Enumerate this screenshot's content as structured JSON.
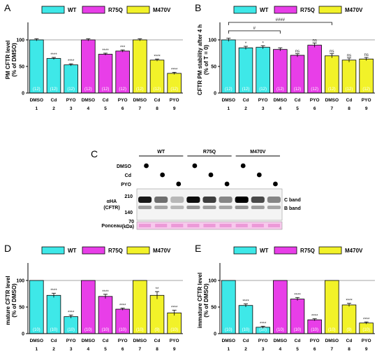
{
  "panel_letters": [
    "A",
    "B",
    "C",
    "D",
    "E"
  ],
  "legend": {
    "entries": [
      {
        "name": "WT",
        "color": "#3ee8e8"
      },
      {
        "name": "R75Q",
        "color": "#e83ee8"
      },
      {
        "name": "M470V",
        "color": "#f2f229"
      }
    ]
  },
  "group_colors": [
    "#3ee8e8",
    "#3ee8e8",
    "#3ee8e8",
    "#e83ee8",
    "#e83ee8",
    "#e83ee8",
    "#f2f229",
    "#f2f229",
    "#f2f229"
  ],
  "blot": {
    "groups": [
      "WT",
      "R75Q",
      "M470V"
    ],
    "treatments": [
      "DMSO",
      "Cd",
      "PYO"
    ],
    "antibody": "αHA\n(CFTR)",
    "loading": "Ponceau",
    "markers": [
      "210",
      "140",
      "70"
    ],
    "marker_unit": "(kDa)",
    "bands": [
      "C band",
      "B band"
    ]
  },
  "chart_data": [
    {
      "panel": "A",
      "type": "bar",
      "ylabel": "PM CFTR level\n(% of DMSO)",
      "ylim": [
        0,
        125
      ],
      "yticks": [
        0,
        50,
        100
      ],
      "reference_line": 100,
      "categories": [
        "DMSO",
        "Cd",
        "PYO",
        "DMSO",
        "Cd",
        "PYO",
        "DMSO",
        "Cd",
        "PYO"
      ],
      "numbers": [
        "1",
        "2",
        "3",
        "4",
        "5",
        "6",
        "7",
        "8",
        "9"
      ],
      "values": [
        100,
        65,
        53,
        100,
        73,
        79,
        100,
        62,
        37
      ],
      "errors": [
        2,
        2,
        2,
        2,
        2,
        2,
        2,
        2,
        2
      ],
      "n_labels": [
        "(12)",
        "(12)",
        "(12)",
        "(12)",
        "(12)",
        "(12)",
        "(12)",
        "(12)",
        "(12)"
      ],
      "significance": [
        "",
        "****",
        "****",
        "",
        "****",
        "***",
        "",
        "****",
        "****"
      ]
    },
    {
      "panel": "B",
      "type": "bar",
      "ylabel": "CFTR PM stability after 4 h\n(% of T = 0)",
      "ylim": [
        0,
        125
      ],
      "yticks": [
        0,
        50,
        100
      ],
      "reference_line": 100,
      "categories": [
        "DMSO",
        "Cd",
        "PYO",
        "DMSO",
        "Cd",
        "PYO",
        "DMSO",
        "Cd",
        "PYO"
      ],
      "numbers": [
        "1",
        "2",
        "3",
        "4",
        "5",
        "6",
        "7",
        "8",
        "9"
      ],
      "values": [
        100,
        85,
        86,
        82,
        71,
        90,
        70,
        62,
        64
      ],
      "errors": [
        3,
        3,
        3,
        3,
        3,
        4,
        4,
        4,
        3
      ],
      "n_labels": [
        "(12)",
        "(12)",
        "(12)",
        "(12)",
        "(12)",
        "(12)",
        "(12)",
        "(12)",
        "(12)"
      ],
      "significance": [
        "",
        "*",
        "*",
        "",
        "ns",
        "ns",
        "ns",
        "ns",
        "ns"
      ],
      "brackets": [
        {
          "from": 1,
          "to": 4,
          "label": "#"
        },
        {
          "from": 1,
          "to": 7,
          "label": "####"
        }
      ]
    },
    {
      "panel": "D",
      "type": "bar",
      "ylabel": "mature CFTR level\n(% of DMSO)",
      "ylim": [
        0,
        125
      ],
      "yticks": [
        0,
        50,
        100
      ],
      "reference_line": 100,
      "categories": [
        "DMSO",
        "Cd",
        "PYO",
        "DMSO",
        "Cd",
        "PYO",
        "DMSO",
        "Cd",
        "PYO"
      ],
      "numbers": [
        "1",
        "2",
        "3",
        "4",
        "5",
        "6",
        "7",
        "8",
        "9"
      ],
      "values": [
        100,
        72,
        32,
        100,
        70,
        46,
        100,
        72,
        39
      ],
      "errors": [
        0,
        4,
        3,
        0,
        4,
        2,
        0,
        7,
        5
      ],
      "n_labels": [
        "(10)",
        "(10)",
        "(10)",
        "(10)",
        "(10)",
        "(10)",
        "(10)",
        "(9)",
        "(10)"
      ],
      "significance": [
        "",
        "****",
        "****",
        "",
        "****",
        "****",
        "",
        "**",
        "****"
      ]
    },
    {
      "panel": "E",
      "type": "bar",
      "ylabel": "immature CFTR level\n(% of DMSO)",
      "ylim": [
        0,
        125
      ],
      "yticks": [
        0,
        50,
        100
      ],
      "reference_line": 100,
      "categories": [
        "DMSO",
        "Cd",
        "PYO",
        "DMSO",
        "Cd",
        "PYO",
        "DMSO",
        "Cd",
        "PYO"
      ],
      "numbers": [
        "1",
        "2",
        "3",
        "4",
        "5",
        "6",
        "7",
        "8",
        "9"
      ],
      "values": [
        100,
        53,
        12,
        100,
        65,
        26,
        100,
        54,
        20
      ],
      "errors": [
        0,
        3,
        2,
        0,
        3,
        2,
        0,
        3,
        2
      ],
      "n_labels": [
        "(10)",
        "(10)",
        "(10)",
        "(10)",
        "(10)",
        "(10)",
        "(10)",
        "(9)",
        "(10)"
      ],
      "significance": [
        "",
        "****",
        "****",
        "",
        "****",
        "****",
        "",
        "****",
        "****"
      ]
    }
  ]
}
